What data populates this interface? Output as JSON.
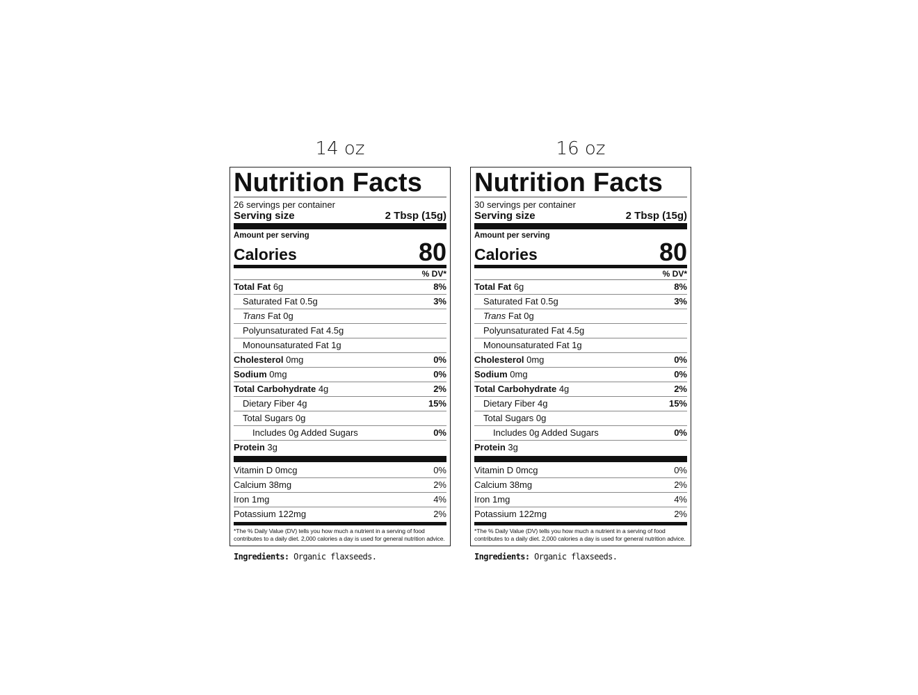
{
  "labels": [
    {
      "size": "14 oz",
      "title": "Nutrition Facts",
      "servings": "26 servings per container",
      "serving_size_label": "Serving size",
      "serving_size_value": "2 Tbsp (15g)",
      "amount_per_serving": "Amount per serving",
      "calories_label": "Calories",
      "calories_value": "80",
      "dv_header": "% DV*",
      "rows": [
        {
          "bold": "Total Fat",
          "text": " 6g",
          "dv": "8%",
          "indent": 0
        },
        {
          "text": "Saturated Fat 0.5g",
          "dv": "3%",
          "indent": 1
        },
        {
          "italic": "Trans",
          "text": " Fat 0g",
          "dv": "",
          "indent": 1
        },
        {
          "text": "Polyunsaturated Fat 4.5g",
          "dv": "",
          "indent": 1
        },
        {
          "text": "Monounsaturated Fat 1g",
          "dv": "",
          "indent": 1
        },
        {
          "bold": "Cholesterol",
          "text": " 0mg",
          "dv": "0%",
          "indent": 0
        },
        {
          "bold": "Sodium",
          "text": " 0mg",
          "dv": "0%",
          "indent": 0
        },
        {
          "bold": "Total Carbohydrate",
          "text": " 4g",
          "dv": "2%",
          "indent": 0
        },
        {
          "text": "Dietary Fiber 4g",
          "dv": "15%",
          "indent": 1
        },
        {
          "text": "Total Sugars 0g",
          "dv": "",
          "indent": 1
        },
        {
          "text": "Includes 0g Added Sugars",
          "dv": "0%",
          "indent": 2
        },
        {
          "bold": "Protein",
          "text": " 3g",
          "dv": "",
          "indent": 0
        }
      ],
      "vitamins": [
        {
          "name": "Vitamin D 0mcg",
          "dv": "0%"
        },
        {
          "name": "Calcium 38mg",
          "dv": "2%"
        },
        {
          "name": "Iron 1mg",
          "dv": "4%"
        },
        {
          "name": "Potassium 122mg",
          "dv": "2%"
        }
      ],
      "footnote": "*The % Daily Value (DV) tells you how much a nutrient in a serving of food contributes to a daily diet. 2,000 calories a day is used for general nutrition advice.",
      "ingredients_label": "Ingredients:",
      "ingredients": " Organic flaxseeds."
    },
    {
      "size": "16 oz",
      "title": "Nutrition Facts",
      "servings": "30 servings per container",
      "serving_size_label": "Serving size",
      "serving_size_value": "2 Tbsp (15g)",
      "amount_per_serving": "Amount per serving",
      "calories_label": "Calories",
      "calories_value": "80",
      "dv_header": "% DV*",
      "rows": [
        {
          "bold": "Total Fat",
          "text": " 6g",
          "dv": "8%",
          "indent": 0
        },
        {
          "text": "Saturated Fat 0.5g",
          "dv": "3%",
          "indent": 1
        },
        {
          "italic": "Trans",
          "text": " Fat 0g",
          "dv": "",
          "indent": 1
        },
        {
          "text": "Polyunsaturated Fat 4.5g",
          "dv": "",
          "indent": 1
        },
        {
          "text": "Monounsaturated Fat 1g",
          "dv": "",
          "indent": 1
        },
        {
          "bold": "Cholesterol",
          "text": " 0mg",
          "dv": "0%",
          "indent": 0
        },
        {
          "bold": "Sodium",
          "text": " 0mg",
          "dv": "0%",
          "indent": 0
        },
        {
          "bold": "Total Carbohydrate",
          "text": " 4g",
          "dv": "2%",
          "indent": 0
        },
        {
          "text": "Dietary Fiber 4g",
          "dv": "15%",
          "indent": 1
        },
        {
          "text": "Total Sugars 0g",
          "dv": "",
          "indent": 1
        },
        {
          "text": "Includes 0g Added Sugars",
          "dv": "0%",
          "indent": 2
        },
        {
          "bold": "Protein",
          "text": " 3g",
          "dv": "",
          "indent": 0
        }
      ],
      "vitamins": [
        {
          "name": "Vitamin D 0mcg",
          "dv": "0%"
        },
        {
          "name": "Calcium 38mg",
          "dv": "2%"
        },
        {
          "name": "Iron 1mg",
          "dv": "4%"
        },
        {
          "name": "Potassium 122mg",
          "dv": "2%"
        }
      ],
      "footnote": "*The % Daily Value (DV) tells you how much a nutrient in a serving of food contributes to a daily diet. 2,000 calories a day is used for general nutrition advice.",
      "ingredients_label": "Ingredients:",
      "ingredients": " Organic flaxseeds."
    }
  ]
}
